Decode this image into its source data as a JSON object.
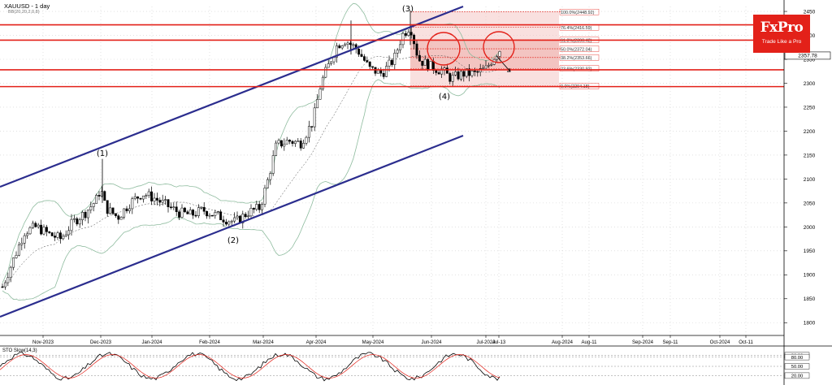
{
  "header": {
    "symbol_line": "XAUUSD - 1 day",
    "indicator_line": "BB(20,20,2,0,8)"
  },
  "logo": {
    "brand": "FxPro",
    "tagline": "Trade Like a Pro",
    "color": "#e32119"
  },
  "oscillator": {
    "label": "STO Slow(14,3)",
    "levels": [
      {
        "text": "86.00",
        "value": 86
      },
      {
        "text": "80.00",
        "value": 80
      },
      {
        "text": "50.00",
        "value": 50
      },
      {
        "text": "20.00",
        "value": 20
      }
    ]
  },
  "chart_data": {
    "type": "candlestick",
    "ylim": [
      1775,
      2490
    ],
    "y_ticks": [
      1800,
      1850,
      1900,
      1950,
      2000,
      2050,
      2100,
      2150,
      2200,
      2250,
      2300,
      2350,
      2400,
      2450
    ],
    "x_ticks": [
      "Nov-2023",
      "Dec-2023",
      "Jan-2024",
      "Feb-2024",
      "Mar-2024",
      "Apr-2024",
      "May-2024",
      "Jun-2024",
      "Jul-2024",
      "Jul-13",
      "Aug-2024",
      "Aug-11",
      "Sep-2024",
      "Sep-11",
      "Oct-2024",
      "Oct-11"
    ],
    "current_price": {
      "label": "2357.78",
      "value": 2357.78
    },
    "horizontal_levels": [
      2422,
      2390,
      2328,
      2293
    ],
    "fibonacci": [
      {
        "label": "100.0%(2448.92)",
        "value": 2448.92
      },
      {
        "label": "76.4%(2416.59)",
        "value": 2416.59
      },
      {
        "label": "61.8%(2390.42)",
        "value": 2390.42
      },
      {
        "label": "50.0%(2372.04)",
        "value": 2372.04
      },
      {
        "label": "38.2%(2353.66)",
        "value": 2353.66
      },
      {
        "label": "23.6%(2330.92)",
        "value": 2330.92
      },
      {
        "label": "0.0%(2294.18)",
        "value": 2294.18
      }
    ],
    "wave_labels": [
      "(1)",
      "(2)",
      "(3)",
      "(4)"
    ],
    "colors": {
      "up": "#2e8b57",
      "down": "#000000",
      "resistance": "#e32119",
      "channel": "#2b2d8e",
      "bands": "#8fbc9f"
    }
  }
}
